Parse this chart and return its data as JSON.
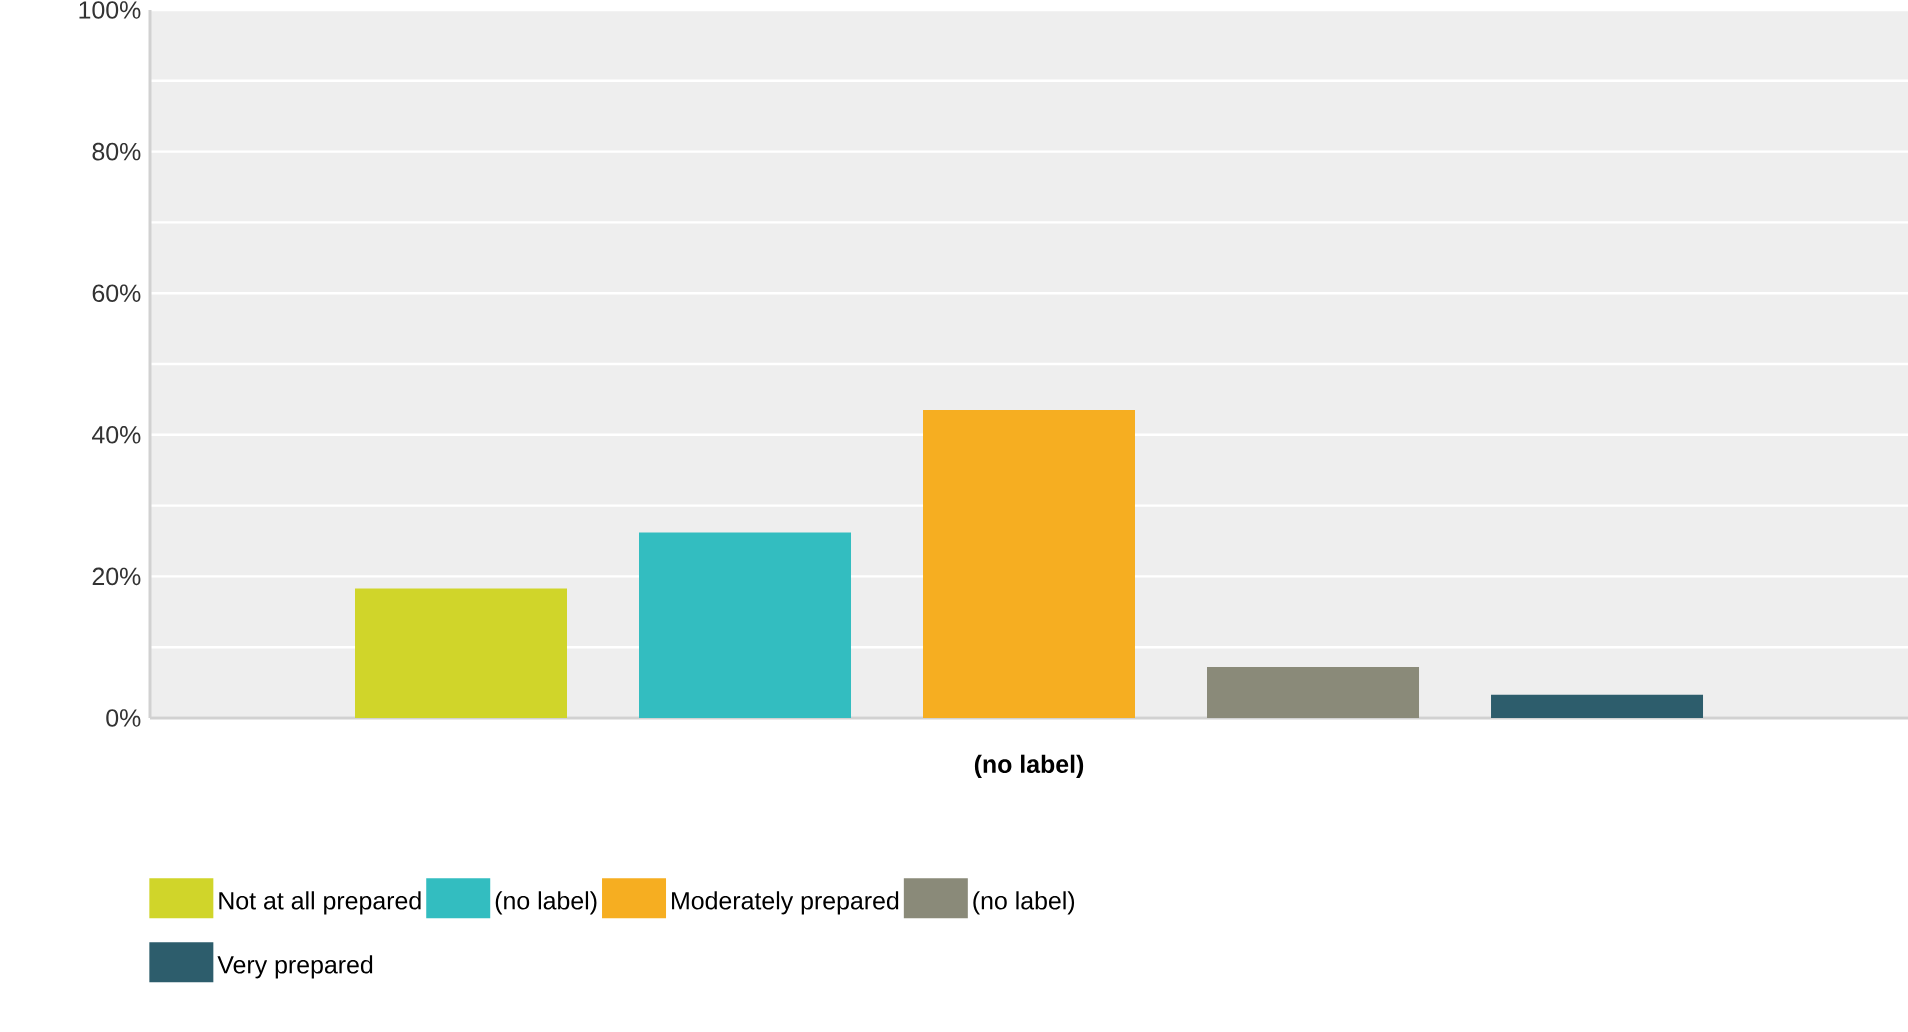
{
  "chart_data": {
    "type": "bar",
    "categories": [
      "(no label)"
    ],
    "series": [
      {
        "name": "Not at all prepared",
        "color": "#d0d52a",
        "values": [
          18.3
        ]
      },
      {
        "name": "(no label)",
        "color": "#33bdc0",
        "values": [
          26.2
        ]
      },
      {
        "name": "Moderately prepared",
        "color": "#f6ae21",
        "values": [
          43.5
        ]
      },
      {
        "name": "(no label)",
        "color": "#8a8a79",
        "values": [
          7.2
        ]
      },
      {
        "name": "Very prepared",
        "color": "#2d5d6c",
        "values": [
          3.3
        ]
      }
    ],
    "ylim": [
      0,
      100
    ],
    "yticks": [
      {
        "value": 0,
        "label": "0%"
      },
      {
        "value": 10,
        "label": null
      },
      {
        "value": 20,
        "label": "20%"
      },
      {
        "value": 30,
        "label": null
      },
      {
        "value": 40,
        "label": "40%"
      },
      {
        "value": 50,
        "label": null
      },
      {
        "value": 60,
        "label": "60%"
      },
      {
        "value": 70,
        "label": null
      },
      {
        "value": 80,
        "label": "80%"
      },
      {
        "value": 90,
        "label": null
      },
      {
        "value": 100,
        "label": "100%"
      }
    ],
    "grid": "y",
    "legend": "bottom"
  }
}
